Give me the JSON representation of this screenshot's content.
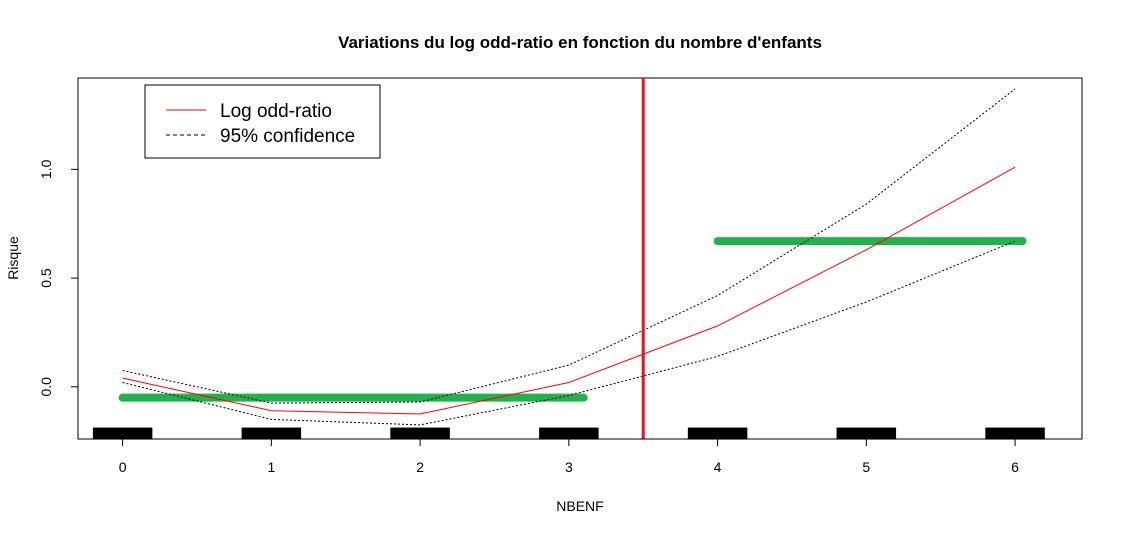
{
  "chart_data": {
    "type": "line",
    "title": "Variations du log odd-ratio en fonction du nombre d'enfants",
    "xlabel": "NBENF",
    "ylabel": "Risque",
    "xlim": [
      -0.3,
      6.45
    ],
    "ylim": [
      -0.24,
      1.42
    ],
    "x_ticks": [
      0,
      1,
      2,
      3,
      4,
      5,
      6
    ],
    "x_tick_labels": [
      "0",
      "1",
      "2",
      "3",
      "4",
      "5",
      "6"
    ],
    "y_ticks": [
      0.0,
      0.5,
      1.0
    ],
    "y_tick_labels": [
      "0.0",
      "0.5",
      "1.0"
    ],
    "legend": {
      "position": "top-left",
      "entries": [
        {
          "label": "Log odd-ratio",
          "color": "#ff0000",
          "style": "solid"
        },
        {
          "label": "95% confidence",
          "color": "#000000",
          "style": "dashed"
        }
      ]
    },
    "series": [
      {
        "name": "Log odd-ratio",
        "color": "#ff0000",
        "style": "solid",
        "x": [
          0,
          1,
          2,
          3,
          4,
          5,
          6
        ],
        "y": [
          0.04,
          -0.11,
          -0.125,
          0.02,
          0.28,
          0.63,
          1.01
        ]
      },
      {
        "name": "95% confidence",
        "color": "#000000",
        "style": "dotted",
        "x": [
          0,
          1,
          2,
          3,
          4,
          5,
          6
        ],
        "y": [
          0.075,
          -0.075,
          -0.07,
          0.1,
          0.42,
          0.84,
          1.37
        ]
      },
      {
        "name": "95% confidence",
        "color": "#000000",
        "style": "dotted",
        "x": [
          0,
          1,
          2,
          3,
          4,
          5,
          6
        ],
        "y": [
          0.02,
          -0.15,
          -0.175,
          -0.04,
          0.14,
          0.39,
          0.67
        ]
      }
    ],
    "step_segments": {
      "color": "#22b14c",
      "segments": [
        {
          "x0": 0,
          "x1": 3.1,
          "y": -0.05
        },
        {
          "x0": 4.0,
          "x1": 6.05,
          "y": 0.67
        }
      ]
    },
    "vertical_line": {
      "x": 3.5,
      "color": "#e8141c"
    },
    "rug": {
      "color": "#000000",
      "y": -0.215,
      "bars": [
        {
          "x0": -0.2,
          "x1": 0.2
        },
        {
          "x0": 0.8,
          "x1": 1.2
        },
        {
          "x0": 1.8,
          "x1": 2.2
        },
        {
          "x0": 2.8,
          "x1": 3.2
        },
        {
          "x0": 3.8,
          "x1": 4.2
        },
        {
          "x0": 4.8,
          "x1": 5.2
        },
        {
          "x0": 5.8,
          "x1": 6.2
        }
      ]
    }
  }
}
